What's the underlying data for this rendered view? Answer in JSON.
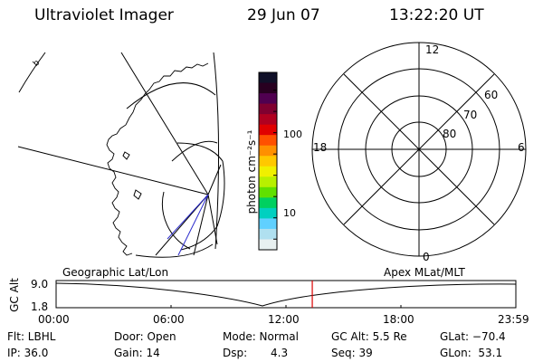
{
  "header": {
    "title": "Ultraviolet Imager",
    "date": "29 Jun 07",
    "time": "13:22:20 UT"
  },
  "geo_panel": {
    "title": "Geographic Lat/Lon"
  },
  "colorbar": {
    "unit_label": "photon cm⁻²s⁻¹",
    "ticks": [
      "100",
      "10"
    ],
    "colors": [
      "#101028",
      "#280020",
      "#500050",
      "#800030",
      "#b00020",
      "#e00000",
      "#ff5000",
      "#ff9000",
      "#ffc800",
      "#f0f000",
      "#b8f000",
      "#60e000",
      "#00d060",
      "#00d0c0",
      "#60d0ff",
      "#b0e0f0",
      "#e8f0f0"
    ]
  },
  "polar_panel": {
    "title": "Apex MLat/MLT",
    "mlt_labels": [
      "12",
      "18",
      "6",
      "0"
    ],
    "lat_labels": [
      "60",
      "70",
      "80"
    ]
  },
  "altitude_plot": {
    "ylabel": "GC Alt",
    "ytick_top": "9.0",
    "ytick_bottom": "1.8",
    "xticks": [
      "00:00",
      "06:00",
      "12:00",
      "18:00",
      "23:59"
    ],
    "current_time_fraction": 0.5572,
    "marker_color": "#dd0000"
  },
  "status": {
    "row1": {
      "flt": "Flt: LBHL",
      "door": "Door: Open",
      "mode": "Mode: Normal",
      "gcalt": "GC Alt: 5.5 Re",
      "glat": "GLat: −70.4"
    },
    "row2": {
      "ip": "IP: 36.0",
      "gain": "Gain: 14",
      "dsp_label": "Dsp:",
      "dsp_value": "4.3",
      "seq": "Seq: 39",
      "glon": "GLon:  53.1"
    }
  }
}
